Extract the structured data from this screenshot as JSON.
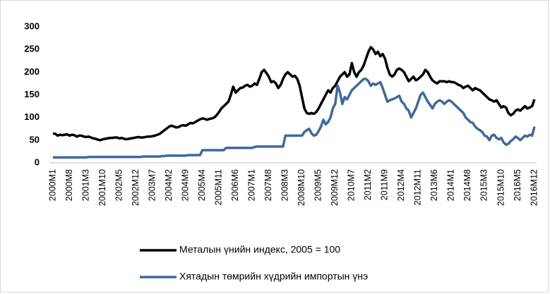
{
  "chart_data": {
    "type": "line",
    "categories": [
      "2000M1",
      null,
      null,
      null,
      null,
      null,
      null,
      "2000M8",
      null,
      null,
      null,
      null,
      null,
      null,
      "2001M3",
      null,
      null,
      null,
      null,
      null,
      null,
      "2001M10",
      null,
      null,
      null,
      null,
      null,
      null,
      "2002M5",
      null,
      null,
      null,
      null,
      null,
      null,
      "2002M12",
      null,
      null,
      null,
      null,
      null,
      null,
      "2003M7",
      null,
      null,
      null,
      null,
      null,
      null,
      "2004M2",
      null,
      null,
      null,
      null,
      null,
      null,
      "2004M9",
      null,
      null,
      null,
      null,
      null,
      null,
      "2005M4",
      null,
      null,
      null,
      null,
      null,
      null,
      "2005M11",
      null,
      null,
      null,
      null,
      null,
      null,
      "2006M6",
      null,
      null,
      null,
      null,
      null,
      null,
      "2007M1",
      null,
      null,
      null,
      null,
      null,
      null,
      "2007M8",
      null,
      null,
      null,
      null,
      null,
      null,
      "2008M3",
      null,
      null,
      null,
      null,
      null,
      null,
      "2008M10",
      null,
      null,
      null,
      null,
      null,
      null,
      "2009M5",
      null,
      null,
      null,
      null,
      null,
      null,
      "2009M12",
      null,
      null,
      null,
      null,
      null,
      null,
      "2010M7",
      null,
      null,
      null,
      null,
      null,
      null,
      "2011M2",
      null,
      null,
      null,
      null,
      null,
      null,
      "2011M9",
      null,
      null,
      null,
      null,
      null,
      null,
      "2012M4",
      null,
      null,
      null,
      null,
      null,
      null,
      "2012M11",
      null,
      null,
      null,
      null,
      null,
      null,
      "2013M6",
      null,
      null,
      null,
      null,
      null,
      null,
      "2014M1",
      null,
      null,
      null,
      null,
      null,
      null,
      "2014M8",
      null,
      null,
      null,
      null,
      null,
      null,
      "2015M3",
      null,
      null,
      null,
      null,
      null,
      null,
      "2015M10",
      null,
      null,
      null,
      null,
      null,
      null,
      "2016M5",
      null,
      null,
      null,
      null,
      null,
      null,
      "2016M12"
    ],
    "series": [
      {
        "name": "Металын үнийн индекс, 2005 = 100",
        "color": "#000000",
        "values": [
          65,
          64,
          60,
          62,
          61,
          62,
          63,
          60,
          62,
          61,
          58,
          60,
          60,
          58,
          57,
          58,
          56,
          54,
          53,
          51,
          50,
          52,
          53,
          54,
          55,
          55,
          56,
          56,
          54,
          55,
          53,
          52,
          53,
          54,
          55,
          56,
          57,
          56,
          56,
          57,
          58,
          58,
          59,
          60,
          62,
          64,
          68,
          72,
          76,
          80,
          82,
          80,
          78,
          79,
          82,
          83,
          82,
          85,
          88,
          87,
          90,
          93,
          96,
          98,
          97,
          95,
          97,
          98,
          100,
          105,
          112,
          120,
          125,
          130,
          135,
          150,
          168,
          155,
          160,
          165,
          166,
          170,
          172,
          168,
          170,
          175,
          172,
          185,
          200,
          205,
          198,
          190,
          178,
          180,
          175,
          165,
          172,
          185,
          195,
          200,
          195,
          190,
          192,
          185,
          170,
          145,
          120,
          110,
          108,
          110,
          108,
          112,
          120,
          130,
          140,
          150,
          160,
          155,
          165,
          170,
          180,
          190,
          195,
          200,
          190,
          195,
          220,
          200,
          190,
          200,
          205,
          215,
          230,
          245,
          255,
          250,
          240,
          245,
          235,
          240,
          230,
          210,
          195,
          190,
          195,
          205,
          208,
          205,
          200,
          190,
          180,
          185,
          190,
          182,
          185,
          190,
          195,
          205,
          200,
          190,
          182,
          178,
          175,
          180,
          180,
          180,
          178,
          180,
          178,
          178,
          175,
          172,
          170,
          165,
          168,
          170,
          165,
          160,
          165,
          162,
          160,
          155,
          150,
          145,
          140,
          138,
          135,
          138,
          130,
          122,
          125,
          122,
          110,
          105,
          108,
          115,
          118,
          115,
          120,
          125,
          120,
          122,
          125,
          140
        ]
      },
      {
        "name": "Хятадын төмрийн хүдрийн импортын үнэ",
        "color": "#41699a",
        "values": [
          12,
          12,
          12,
          12,
          12,
          12,
          12,
          12,
          12,
          12,
          12,
          12,
          12,
          12,
          12,
          13,
          13,
          13,
          13,
          13,
          13,
          13,
          13,
          13,
          13,
          13,
          13,
          13,
          13,
          13,
          13,
          13,
          13,
          13,
          13,
          13,
          13,
          13,
          14,
          14,
          14,
          14,
          14,
          14,
          14,
          14,
          15,
          15,
          16,
          16,
          16,
          16,
          16,
          16,
          16,
          16,
          16,
          17,
          17,
          17,
          17,
          17,
          17,
          28,
          28,
          28,
          28,
          28,
          28,
          28,
          28,
          28,
          28,
          33,
          33,
          33,
          33,
          33,
          33,
          33,
          33,
          33,
          33,
          33,
          33,
          35,
          36,
          36,
          36,
          36,
          36,
          36,
          36,
          36,
          36,
          36,
          36,
          36,
          60,
          60,
          60,
          60,
          60,
          60,
          60,
          60,
          68,
          72,
          75,
          65,
          60,
          62,
          70,
          80,
          95,
          85,
          90,
          100,
          120,
          130,
          170,
          155,
          130,
          145,
          140,
          150,
          160,
          165,
          170,
          175,
          180,
          185,
          185,
          180,
          170,
          175,
          172,
          175,
          178,
          165,
          150,
          135,
          138,
          140,
          142,
          145,
          148,
          135,
          130,
          120,
          115,
          100,
          110,
          120,
          135,
          150,
          155,
          145,
          135,
          128,
          120,
          130,
          135,
          138,
          135,
          130,
          135,
          138,
          135,
          130,
          125,
          120,
          115,
          110,
          100,
          95,
          90,
          88,
          80,
          75,
          72,
          68,
          60,
          58,
          50,
          60,
          62,
          55,
          52,
          55,
          45,
          40,
          42,
          48,
          52,
          58,
          55,
          50,
          55,
          60,
          58,
          62,
          60,
          80
        ]
      }
    ],
    "ylim": [
      0,
      300
    ],
    "yticks": [
      0,
      50,
      100,
      150,
      200,
      250,
      300
    ],
    "grid": false
  }
}
